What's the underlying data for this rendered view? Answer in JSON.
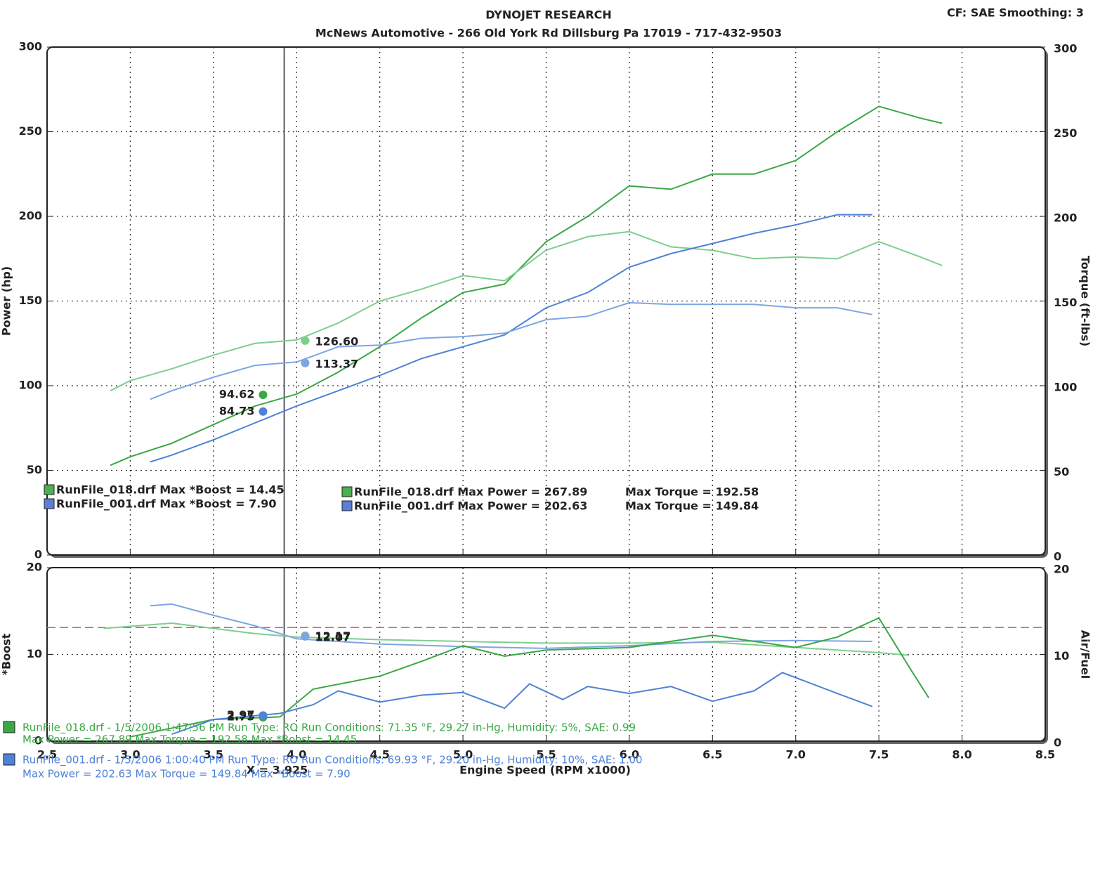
{
  "header": {
    "title": "DYNOJET RESEARCH",
    "subtitle": "McNews Automotive - 266 Old York Rd Dillsburg Pa 17019 - 717-432-9503",
    "settings": "CF: SAE  Smoothing: 3"
  },
  "chart_data": [
    {
      "type": "line",
      "ylabel": "Power (hp)",
      "y2label": "Torque (ft-lbs)",
      "xlim": [
        2.5,
        8.5
      ],
      "xticks": [
        3,
        3.5,
        4,
        4.5,
        5,
        5.5,
        6,
        6.5,
        7,
        7.5,
        8
      ],
      "ylim": [
        0,
        300
      ],
      "yticks": [
        0,
        50,
        100,
        150,
        200,
        250,
        300
      ],
      "y2lim": [
        0,
        300
      ],
      "y2ticks": [
        0,
        50,
        100,
        150,
        200,
        250,
        300
      ],
      "grid": true,
      "cursor_x": 3.925,
      "legend": [
        "RunFile_018.drf Max *Boost = 14.45",
        "RunFile_001.drf Max *Boost = 7.90",
        "RunFile_018.drf Max Power = 267.89",
        "RunFile_001.drf Max Power = 202.63",
        "Max Torque = 192.58",
        "Max Torque = 149.84"
      ],
      "series": [
        {
          "color": "#3aa845",
          "axis": "y",
          "x": [
            2.88,
            3,
            3.25,
            3.5,
            3.75,
            4,
            4.25,
            4.5,
            4.75,
            5,
            5.25,
            5.5,
            5.75,
            6,
            6.25,
            6.5,
            6.75,
            7,
            7.25,
            7.5,
            7.75,
            7.88
          ],
          "values": [
            53,
            58,
            66,
            77,
            88,
            95,
            108,
            123,
            140,
            155,
            160,
            185,
            200,
            218,
            216,
            225,
            225,
            233,
            250,
            265,
            258,
            255
          ],
          "cursor_value": 94.62,
          "cursor_label": "94.62"
        },
        {
          "color": "#7fce8e",
          "axis": "y2",
          "x": [
            2.88,
            3,
            3.25,
            3.5,
            3.75,
            4,
            4.25,
            4.5,
            4.75,
            5,
            5.25,
            5.5,
            5.75,
            6,
            6.25,
            6.5,
            6.75,
            7,
            7.25,
            7.5,
            7.75,
            7.88
          ],
          "values": [
            97,
            103,
            110,
            118,
            125,
            127,
            137,
            150,
            157,
            165,
            162,
            180,
            188,
            191,
            182,
            180,
            175,
            176,
            175,
            185,
            176,
            171
          ],
          "cursor_value": 126.6,
          "cursor_label": "126.60"
        },
        {
          "color": "#4f82d8",
          "axis": "y",
          "x": [
            3.12,
            3.25,
            3.5,
            3.75,
            4,
            4.25,
            4.5,
            4.75,
            5,
            5.25,
            5.5,
            5.75,
            6,
            6.25,
            6.5,
            6.75,
            7,
            7.25,
            7.46
          ],
          "values": [
            55,
            59,
            68,
            78,
            88,
            97,
            106,
            116,
            123,
            130,
            146,
            155,
            170,
            178,
            184,
            190,
            195,
            201,
            201
          ],
          "cursor_value": 84.73,
          "cursor_label": "84.73"
        },
        {
          "color": "#7ea5e3",
          "axis": "y2",
          "x": [
            3.12,
            3.25,
            3.5,
            3.75,
            4,
            4.25,
            4.5,
            4.75,
            5,
            5.25,
            5.5,
            5.75,
            6,
            6.25,
            6.5,
            6.75,
            7,
            7.25,
            7.46
          ],
          "values": [
            92,
            97,
            105,
            112,
            114,
            123,
            124,
            128,
            129,
            131,
            139,
            141,
            149,
            148,
            148,
            148,
            146,
            146,
            142
          ],
          "cursor_value": 113.37,
          "cursor_label": "113.37"
        }
      ]
    },
    {
      "type": "line",
      "ylabel": "*Boost",
      "y2label": "Air/Fuel",
      "xlabel": "Engine Speed (RPM x1000)",
      "xlim": [
        2.5,
        8.5
      ],
      "xticks": [
        {
          "value": 2.5,
          "label": "2.5"
        },
        {
          "value": 3,
          "label": "3.0"
        },
        {
          "value": 3.5,
          "label": "3.5"
        },
        {
          "value": 4,
          "label": "4.0"
        },
        {
          "value": 4.5,
          "label": "4.5"
        },
        {
          "value": 5,
          "label": "5.0"
        },
        {
          "value": 5.5,
          "label": "5.5"
        },
        {
          "value": 6,
          "label": "6.0"
        },
        {
          "value": 6.5,
          "label": "6.5"
        },
        {
          "value": 7,
          "label": "7.0"
        },
        {
          "value": 7.5,
          "label": "7.5"
        },
        {
          "value": 8,
          "label": "8.0"
        },
        {
          "value": 8.5,
          "label": "8.5"
        }
      ],
      "ylim": [
        0,
        20
      ],
      "yticks": [
        0,
        10,
        20
      ],
      "y2lim": [
        0,
        20
      ],
      "y2ticks": [
        0,
        10,
        20
      ],
      "grid": true,
      "cursor_x": 3.925,
      "cursor_label": "X = 3.925",
      "reference_y2": 13.1,
      "reference_color": "#e05a5a",
      "series": [
        {
          "color": "#7fce8e",
          "axis": "y2",
          "x": [
            2.84,
            3.25,
            3.5,
            3.75,
            4,
            4.5,
            5,
            5.5,
            6,
            6.5,
            7,
            7.5,
            7.68
          ],
          "values": [
            13,
            13.6,
            13,
            12.4,
            12,
            11.7,
            11.5,
            11.3,
            11.3,
            11.4,
            10.8,
            10.2,
            9.9
          ],
          "cursor_value": 12.17,
          "cursor_label": "12.17"
        },
        {
          "color": "#7ea5e3",
          "axis": "y2",
          "x": [
            3.12,
            3.25,
            3.5,
            3.75,
            4,
            4.5,
            5,
            5.5,
            6,
            6.5,
            7,
            7.46
          ],
          "values": [
            15.6,
            15.8,
            14.5,
            13.3,
            11.8,
            11.2,
            10.9,
            10.7,
            11,
            11.5,
            11.6,
            11.5
          ],
          "cursor_value": 12.07,
          "cursor_label": "12.07"
        },
        {
          "color": "#3aa845",
          "axis": "y",
          "x": [
            3,
            3.5,
            3.9,
            4.1,
            4.5,
            4.75,
            5,
            5.25,
            5.5,
            6,
            6.5,
            7,
            7.25,
            7.5,
            7.7,
            7.8
          ],
          "values": [
            0.5,
            2.5,
            2.8,
            6,
            7.5,
            9.2,
            11,
            9.8,
            10.5,
            10.8,
            12.2,
            10.8,
            12,
            14.2,
            8,
            5
          ],
          "cursor_value": 2.75,
          "cursor_label": "2.75"
        },
        {
          "color": "#4f82d8",
          "axis": "y",
          "x": [
            3.25,
            3.5,
            3.9,
            4.1,
            4.25,
            4.5,
            4.75,
            5,
            5.25,
            5.4,
            5.6,
            5.75,
            6,
            6.25,
            6.5,
            6.75,
            6.92,
            7.25,
            7.46
          ],
          "values": [
            0.8,
            2.5,
            3.2,
            4.2,
            5.8,
            4.5,
            5.3,
            5.6,
            3.8,
            6.6,
            4.8,
            6.3,
            5.5,
            6.3,
            4.6,
            5.8,
            7.9,
            5.5,
            4
          ],
          "cursor_value": 2.97,
          "cursor_label": "2.97"
        }
      ]
    }
  ],
  "footer": [
    "RunFile_018.drf - 1/5/2006 1:47:56 PM  Run Type: RO  Run Conditions: 71.35 °F, 29.27 in-Hg,  Humidity:  5%, SAE: 0.99",
    "Max Power = 267.89  Max Torque = 192.58  Max *Boost = 14.45",
    "RunFile_001.drf - 1/5/2006 1:00:40 PM  Run Type: RO  Run Conditions: 69.93 °F, 29.20 in-Hg,  Humidity:  10%, SAE: 1.00",
    "Max Power = 202.63  Max Torque = 149.84  Max *Boost = 7.90"
  ]
}
